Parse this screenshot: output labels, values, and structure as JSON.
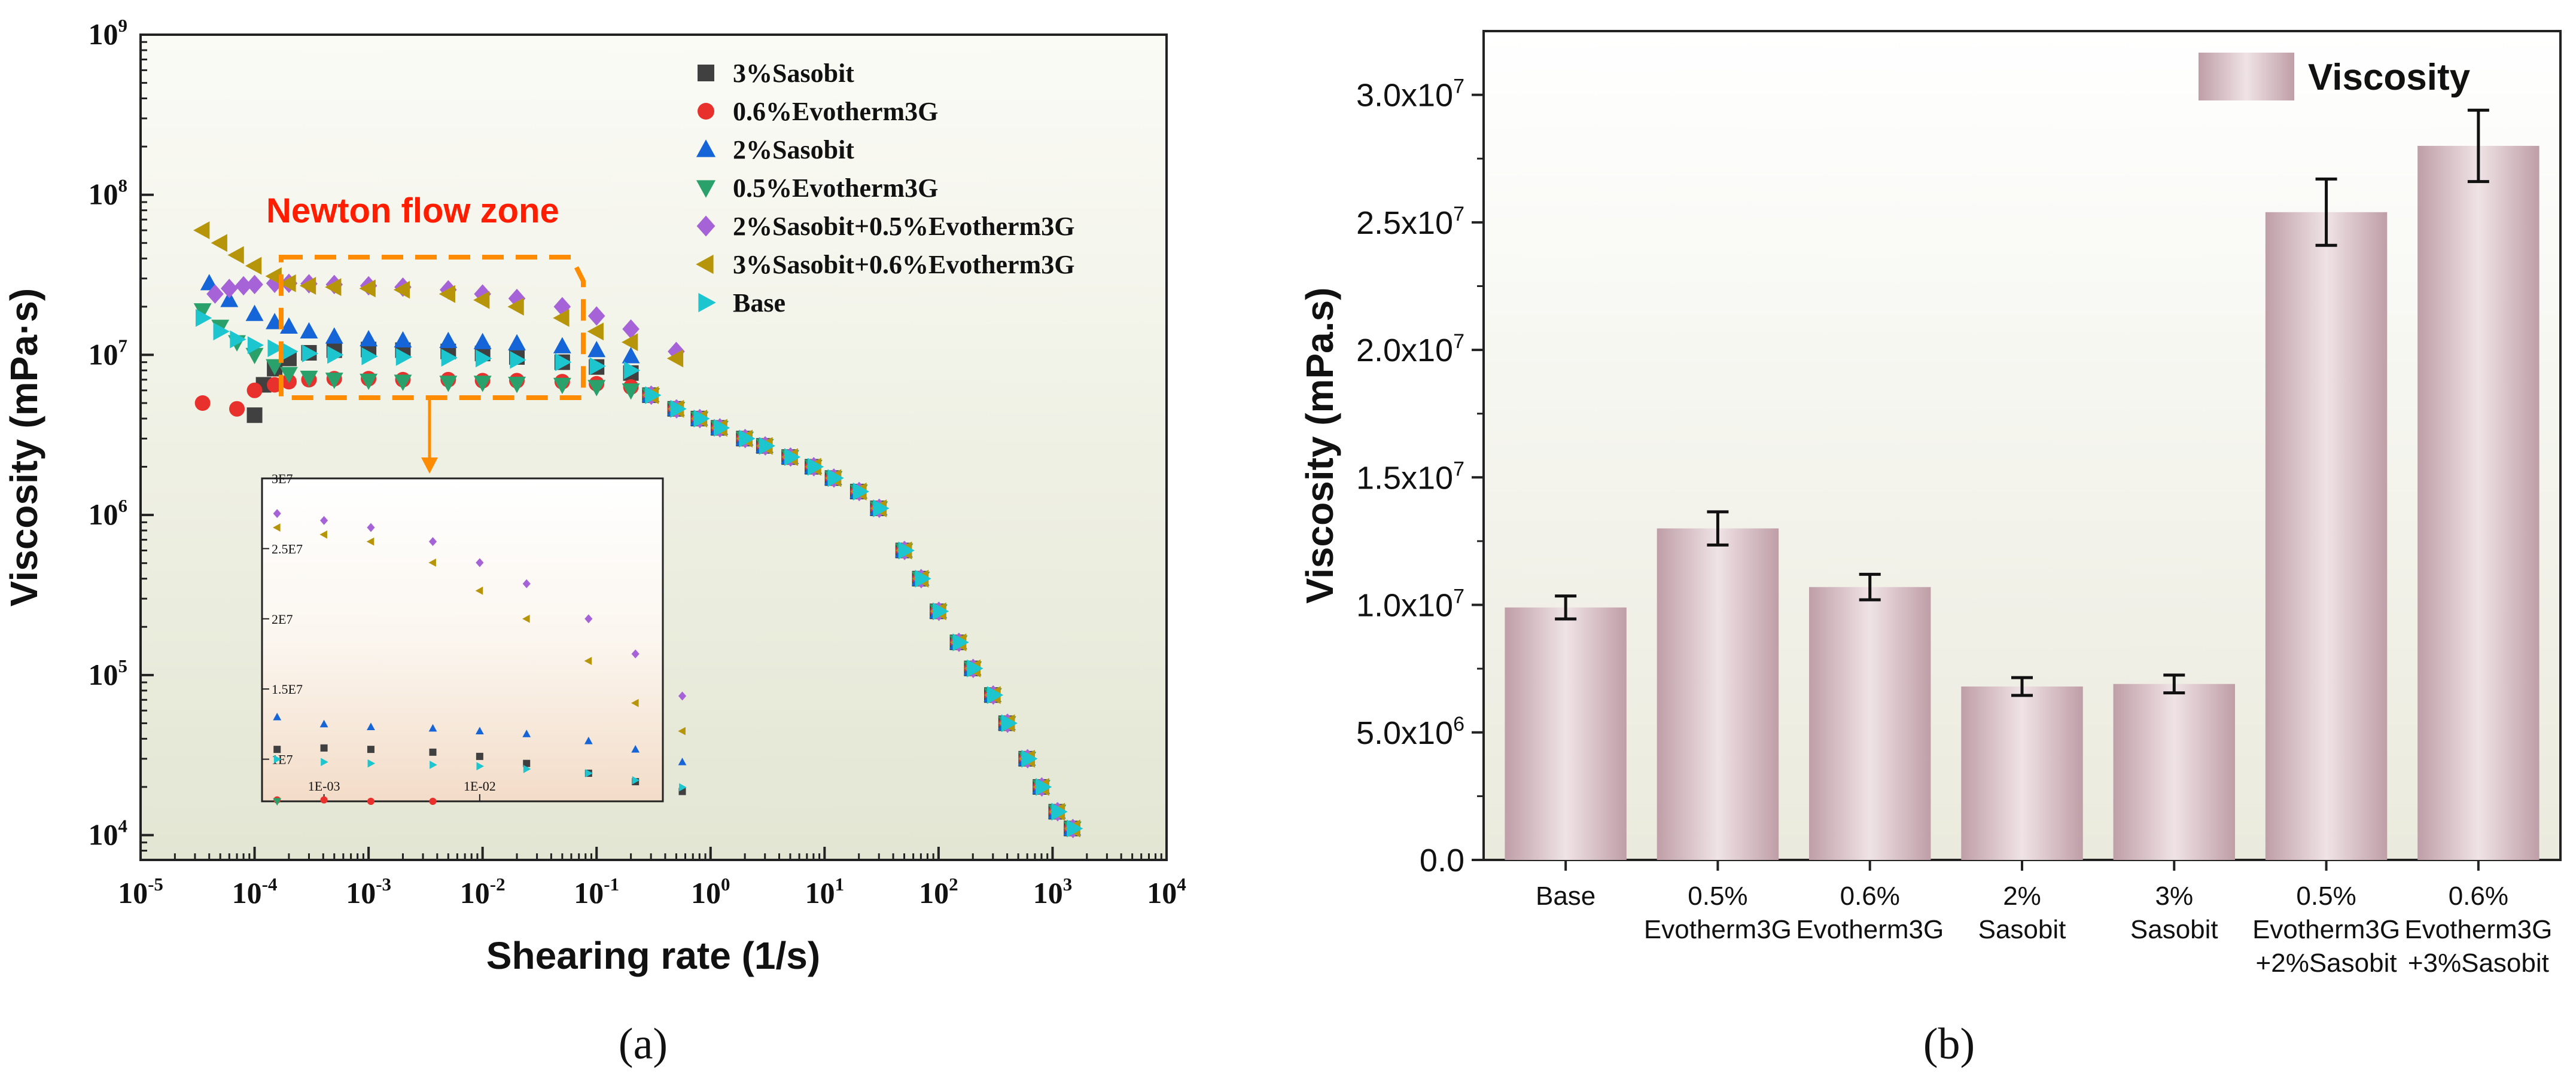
{
  "chart_data": [
    {
      "panel": "a",
      "panel_label": "(a)",
      "type": "scatter",
      "x_scale": "log",
      "y_scale": "log",
      "xlabel": "Shearing rate (1/s)",
      "ylabel": "Viscosity (mPa·s)",
      "xlim": [
        1e-05,
        10000.0
      ],
      "ylim": [
        7000,
        1000000000.0
      ],
      "x_ticks": [
        1e-05,
        0.0001,
        0.001,
        0.01,
        0.1,
        1,
        10,
        100,
        1000,
        10000
      ],
      "x_tick_exponents": [
        "-5",
        "-4",
        "-3",
        "-2",
        "-1",
        "0",
        "1",
        "2",
        "3",
        "4"
      ],
      "y_ticks": [
        10000.0,
        100000.0,
        1000000.0,
        10000000.0,
        100000000.0,
        1000000000.0
      ],
      "y_tick_exponents": [
        "4",
        "5",
        "6",
        "7",
        "8",
        "9"
      ],
      "tick_base": "10",
      "annotation": "Newton flow zone",
      "colors": {
        "annotation": "#ff1d00",
        "box": "#ff8c00",
        "bg_top": "#fbfbf7",
        "bg_bottom": "#e4e7d4"
      },
      "legend_position": "top-right",
      "series": [
        {
          "name": "3%Sasobit",
          "marker": "square",
          "color": "#404040",
          "x": [
            0.0001,
            0.00012,
            0.00015,
            0.0002,
            0.0003,
            0.0005,
            0.001,
            0.002,
            0.005,
            0.01,
            0.02,
            0.05,
            0.1,
            0.2
          ],
          "y": [
            4200000.0,
            6500000.0,
            8200000.0,
            9500000.0,
            10300000.0,
            10700000.0,
            10800000.0,
            10700000.0,
            10500000.0,
            10200000.0,
            9700000.0,
            9000000.0,
            8400000.0,
            7700000.0
          ]
        },
        {
          "name": "0.6%Evotherm3G",
          "marker": "circle",
          "color": "#e8302c",
          "x": [
            3.5e-05,
            7e-05,
            0.0001,
            0.00015,
            0.0002,
            0.0003,
            0.0005,
            0.001,
            0.002,
            0.005,
            0.01,
            0.02,
            0.05,
            0.1,
            0.2
          ],
          "y": [
            5000000.0,
            4600000.0,
            6000000.0,
            6500000.0,
            6800000.0,
            7000000.0,
            7100000.0,
            7100000.0,
            7000000.0,
            7000000.0,
            6900000.0,
            6900000.0,
            6800000.0,
            6600000.0,
            6300000.0
          ]
        },
        {
          "name": "2%Sasobit",
          "marker": "triangle-up",
          "color": "#1565d8",
          "x": [
            4e-05,
            6e-05,
            0.0001,
            0.00015,
            0.0002,
            0.0003,
            0.0005,
            0.001,
            0.002,
            0.005,
            0.01,
            0.02,
            0.05,
            0.1,
            0.2
          ],
          "y": [
            28000000.0,
            22000000.0,
            18000000.0,
            16000000.0,
            15000000.0,
            14000000.0,
            13000000.0,
            12500000.0,
            12300000.0,
            12200000.0,
            12000000.0,
            11800000.0,
            11300000.0,
            10700000.0,
            9800000.0
          ]
        },
        {
          "name": "0.5%Evotherm3G",
          "marker": "triangle-down",
          "color": "#2aa06a",
          "x": [
            3.5e-05,
            5e-05,
            7e-05,
            0.0001,
            0.00015,
            0.0002,
            0.0003,
            0.0005,
            0.001,
            0.002,
            0.005,
            0.01,
            0.02,
            0.05,
            0.1,
            0.2
          ],
          "y": [
            19000000.0,
            15000000.0,
            12000000.0,
            10000000.0,
            8500000.0,
            7600000.0,
            7200000.0,
            7000000.0,
            6900000.0,
            6800000.0,
            6700000.0,
            6700000.0,
            6600000.0,
            6500000.0,
            6300000.0,
            6000000.0
          ]
        },
        {
          "name": "2%Sasobit+0.5%Evotherm3G",
          "marker": "diamond",
          "color": "#a663d8",
          "x": [
            4.5e-05,
            6e-05,
            8e-05,
            0.0001,
            0.00015,
            0.0002,
            0.0003,
            0.0005,
            0.001,
            0.002,
            0.005,
            0.01,
            0.02,
            0.05,
            0.1,
            0.2,
            0.5
          ],
          "y": [
            24000000.0,
            26000000.0,
            27000000.0,
            27500000.0,
            28000000.0,
            28000000.0,
            27800000.0,
            27500000.0,
            27000000.0,
            26500000.0,
            25500000.0,
            24000000.0,
            22500000.0,
            20000000.0,
            17500000.0,
            14500000.0,
            10500000.0
          ]
        },
        {
          "name": "3%Sasobit+0.6%Evotherm3G",
          "marker": "triangle-left",
          "color": "#b7950b",
          "x": [
            3.5e-05,
            5e-05,
            7e-05,
            0.0001,
            0.00015,
            0.0002,
            0.0003,
            0.0005,
            0.001,
            0.002,
            0.005,
            0.01,
            0.02,
            0.05,
            0.1,
            0.2,
            0.5
          ],
          "y": [
            60000000.0,
            50000000.0,
            42000000.0,
            36000000.0,
            31000000.0,
            28000000.0,
            27000000.0,
            26500000.0,
            26000000.0,
            25500000.0,
            24000000.0,
            22000000.0,
            20000000.0,
            17000000.0,
            14000000.0,
            12000000.0,
            9500000.0
          ]
        },
        {
          "name": "Base",
          "marker": "triangle-right",
          "color": "#1dc6cf",
          "x": [
            3.5e-05,
            5e-05,
            7e-05,
            0.0001,
            0.00015,
            0.0002,
            0.0003,
            0.0005,
            0.001,
            0.002,
            0.005,
            0.01,
            0.02,
            0.05,
            0.1,
            0.2
          ],
          "y": [
            17000000.0,
            14000000.0,
            12500000.0,
            11500000.0,
            11000000.0,
            10500000.0,
            10200000.0,
            10000000.0,
            9800000.0,
            9700000.0,
            9600000.0,
            9500000.0,
            9300000.0,
            9000000.0,
            8500000.0,
            8000000.0
          ]
        }
      ],
      "shared_tail": {
        "x": [
          0.3,
          0.5,
          0.8,
          1.2,
          2,
          3,
          5,
          8,
          12,
          20,
          30,
          50,
          70,
          100,
          150,
          200,
          300,
          400,
          600,
          800,
          1100,
          1500
        ],
        "y": [
          5600000.0,
          4600000.0,
          4000000.0,
          3500000.0,
          3000000.0,
          2700000.0,
          2300000.0,
          2000000.0,
          1700000.0,
          1400000.0,
          1100000.0,
          600000.0,
          400000.0,
          250000.0,
          160000.0,
          110000.0,
          75000.0,
          50000.0,
          30000.0,
          20000.0,
          14000.0,
          11000.0
        ]
      },
      "inset": {
        "x_ticks": [
          0.001,
          0.01
        ],
        "x_tick_labels": [
          "1E-03",
          "1E-02"
        ],
        "xlim": [
          0.0004,
          0.15
        ],
        "ylim": [
          7000000.0,
          30000000.0
        ],
        "y_ticks": [
          10000000.0,
          15000000.0,
          20000000.0,
          25000000.0,
          30000000.0
        ],
        "y_tick_labels": [
          "1E7",
          "1.5E7",
          "2E7",
          "2.5E7",
          "3E7"
        ]
      }
    },
    {
      "panel": "b",
      "panel_label": "(b)",
      "type": "bar",
      "ylabel": "Viscosity (mPa.s)",
      "ylim": [
        0,
        32500000.0
      ],
      "y_ticks": [
        0,
        5000000.0,
        10000000.0,
        15000000.0,
        20000000.0,
        25000000.0,
        30000000.0
      ],
      "y_tick_labels": [
        {
          "mantissa": "0.0",
          "exponent": ""
        },
        {
          "mantissa": "5.0x10",
          "exponent": "6"
        },
        {
          "mantissa": "1.0x10",
          "exponent": "7"
        },
        {
          "mantissa": "1.5x10",
          "exponent": "7"
        },
        {
          "mantissa": "2.0x10",
          "exponent": "7"
        },
        {
          "mantissa": "2.5x10",
          "exponent": "7"
        },
        {
          "mantissa": "3.0x10",
          "exponent": "7"
        }
      ],
      "legend": "Viscosity",
      "legend_position": "top-right",
      "categories": [
        [
          "Base"
        ],
        [
          "0.5%",
          "Evotherm3G"
        ],
        [
          "0.6%",
          "Evotherm3G"
        ],
        [
          "2%",
          "Sasobit"
        ],
        [
          "3%",
          "Sasobit"
        ],
        [
          "0.5%",
          "Evotherm3G",
          "+2%Sasobit"
        ],
        [
          "0.6%",
          "Evotherm3G",
          "+3%Sasobit"
        ]
      ],
      "values": [
        9900000.0,
        13000000.0,
        10700000.0,
        6800000.0,
        6900000.0,
        25400000.0,
        28000000.0
      ],
      "errors": [
        450000.0,
        650000.0,
        500000.0,
        350000.0,
        350000.0,
        1300000.0,
        1400000.0
      ],
      "colors": {
        "bar_edge": "#b89aa3",
        "bar_center": "#ecdfe2",
        "bar_side": "#c7a7b0",
        "bg_top": "#ffffff",
        "bg_bottom": "#ebebdf"
      }
    }
  ]
}
